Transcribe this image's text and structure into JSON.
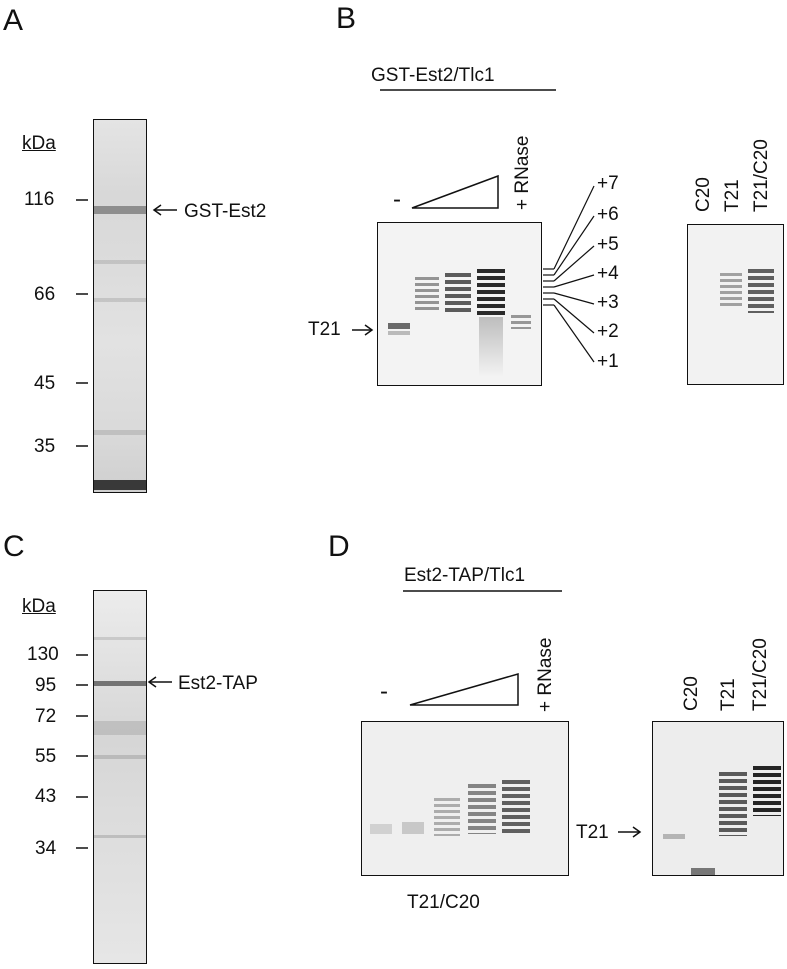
{
  "panels": {
    "A": {
      "letter": "A",
      "kda_label": "kDa",
      "markers": [
        "116",
        "66",
        "45",
        "35"
      ],
      "arrow_label": "GST-Est2"
    },
    "B": {
      "letter": "B",
      "header": "GST-Est2/Tlc1",
      "minus": "-",
      "rnase": "+ RNase",
      "t21_label": "T21",
      "ladder": [
        "+7",
        "+6",
        "+5",
        "+4",
        "+3",
        "+2",
        "+1"
      ],
      "right_lanes": [
        "C20",
        "T21",
        "T21/C20"
      ]
    },
    "C": {
      "letter": "C",
      "kda_label": "kDa",
      "markers": [
        "130",
        "95",
        "72",
        "55",
        "43",
        "34"
      ],
      "arrow_label": "Est2-TAP"
    },
    "D": {
      "letter": "D",
      "header": "Est2-TAP/Tlc1",
      "minus": "-",
      "rnase": "+ RNase",
      "bottom_label": "T21/C20",
      "t21_label": "T21",
      "right_lanes": [
        "C20",
        "T21",
        "T21/C20"
      ]
    }
  }
}
